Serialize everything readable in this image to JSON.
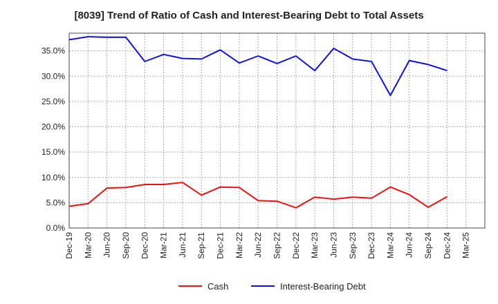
{
  "chart_data": {
    "type": "line",
    "title": "[8039]  Trend of Ratio of Cash and Interest-Bearing Debt to Total Assets",
    "xlabel": "",
    "ylabel": "",
    "categories": [
      "Dec-19",
      "Mar-20",
      "Jun-20",
      "Sep-20",
      "Dec-20",
      "Mar-21",
      "Jun-21",
      "Sep-21",
      "Dec-21",
      "Mar-22",
      "Jun-22",
      "Sep-22",
      "Dec-22",
      "Mar-23",
      "Jun-23",
      "Sep-23",
      "Dec-23",
      "Mar-24",
      "Jun-24",
      "Sep-24",
      "Dec-24",
      "Mar-25"
    ],
    "y_ticks": [
      "0.0%",
      "5.0%",
      "10.0%",
      "15.0%",
      "20.0%",
      "25.0%",
      "30.0%",
      "35.0%"
    ],
    "ylim": [
      0,
      38.5
    ],
    "grid": true,
    "legend_position": "bottom",
    "series": [
      {
        "name": "Cash",
        "color": "#ee1111",
        "values": [
          4.3,
          4.8,
          7.9,
          8.0,
          8.6,
          8.6,
          9.0,
          6.5,
          8.1,
          8.0,
          5.4,
          5.3,
          4.0,
          6.1,
          5.7,
          6.1,
          5.9,
          8.1,
          6.6,
          4.1,
          6.2,
          null
        ]
      },
      {
        "name": "Interest-Bearing Debt",
        "color": "#1111dd",
        "values": [
          37.2,
          37.8,
          37.7,
          37.7,
          32.9,
          34.3,
          33.5,
          33.4,
          35.2,
          32.6,
          34.0,
          32.5,
          34.0,
          31.1,
          35.5,
          33.4,
          32.9,
          26.2,
          33.1,
          32.3,
          31.1,
          null
        ]
      }
    ]
  }
}
